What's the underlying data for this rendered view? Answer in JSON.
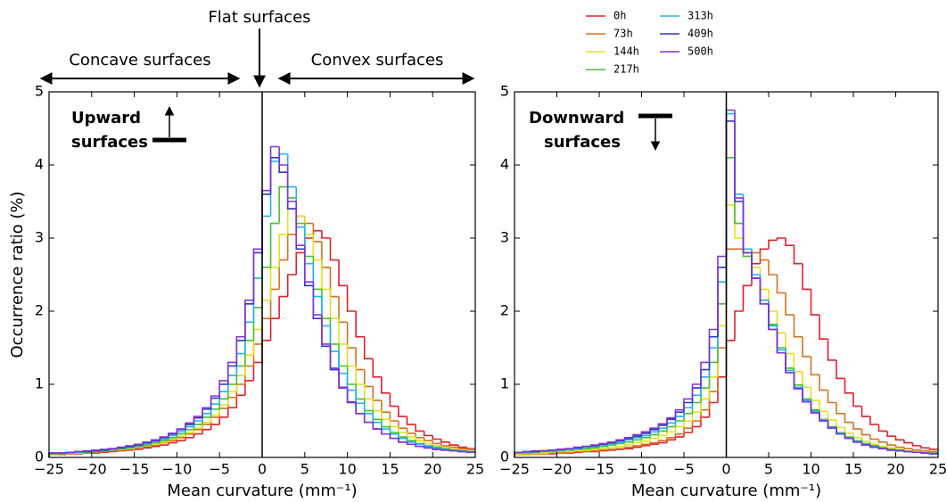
{
  "chart_data": [
    {
      "type": "histogram",
      "xlabel": "Mean curvature (mm⁻¹)",
      "ylabel": "Occurrence ratio (%)",
      "annotations": [
        "Flat surfaces",
        "Concave surfaces",
        "Convex surfaces"
      ],
      "label_lines": [
        "Upward",
        "surfaces"
      ],
      "xlim": [
        -25,
        25
      ],
      "ylim": [
        0,
        5
      ],
      "vline": 0,
      "xticks": [
        {
          "value": -25,
          "label": "−25"
        },
        {
          "value": -20,
          "label": "−20"
        },
        {
          "value": -15,
          "label": "−15"
        },
        {
          "value": -10,
          "label": "−10"
        },
        {
          "value": -5,
          "label": "−5"
        },
        0,
        5,
        10,
        15,
        20,
        25
      ],
      "yticks": [
        0,
        1,
        2,
        3,
        4,
        5
      ],
      "bins": [
        -25,
        -24,
        -23,
        -22,
        -21,
        -20,
        -19,
        -18,
        -17,
        -16,
        -15,
        -14,
        -13,
        -12,
        -11,
        -10,
        -9,
        -8,
        -7,
        -6,
        -5,
        -4,
        -3,
        -2,
        -1,
        0,
        1,
        2,
        3,
        4,
        5,
        6,
        7,
        8,
        9,
        10,
        11,
        12,
        13,
        14,
        15,
        16,
        17,
        18,
        19,
        20,
        21,
        22,
        23,
        24,
        25
      ],
      "series": [
        {
          "name": "0h",
          "color": "#e0202a",
          "values": [
            0.04,
            0.04,
            0.05,
            0.05,
            0.06,
            0.06,
            0.07,
            0.08,
            0.09,
            0.1,
            0.11,
            0.13,
            0.15,
            0.17,
            0.2,
            0.23,
            0.27,
            0.32,
            0.38,
            0.45,
            0.55,
            0.68,
            0.85,
            1.05,
            1.3,
            1.6,
            1.9,
            2.2,
            2.5,
            2.8,
            3.0,
            3.1,
            3.0,
            2.7,
            2.35,
            2.0,
            1.65,
            1.35,
            1.1,
            0.88,
            0.7,
            0.56,
            0.45,
            0.36,
            0.3,
            0.25,
            0.21,
            0.17,
            0.14,
            0.12
          ]
        },
        {
          "name": "73h",
          "color": "#d2731e",
          "values": [
            0.04,
            0.05,
            0.05,
            0.06,
            0.06,
            0.07,
            0.08,
            0.09,
            0.1,
            0.11,
            0.13,
            0.15,
            0.17,
            0.2,
            0.23,
            0.27,
            0.32,
            0.38,
            0.45,
            0.55,
            0.67,
            0.82,
            1.0,
            1.25,
            1.55,
            1.9,
            2.3,
            2.7,
            3.05,
            3.3,
            3.2,
            2.95,
            2.6,
            2.2,
            1.85,
            1.5,
            1.2,
            0.97,
            0.78,
            0.62,
            0.5,
            0.4,
            0.33,
            0.27,
            0.23,
            0.19,
            0.16,
            0.14,
            0.12,
            0.11
          ]
        },
        {
          "name": "144h",
          "color": "#e2e020",
          "values": [
            0.05,
            0.05,
            0.06,
            0.06,
            0.07,
            0.08,
            0.09,
            0.1,
            0.11,
            0.12,
            0.14,
            0.16,
            0.18,
            0.21,
            0.25,
            0.29,
            0.34,
            0.4,
            0.48,
            0.58,
            0.72,
            0.9,
            1.12,
            1.4,
            1.75,
            2.15,
            2.6,
            3.05,
            3.4,
            3.3,
            3.05,
            2.7,
            2.3,
            1.9,
            1.55,
            1.25,
            1.0,
            0.8,
            0.64,
            0.52,
            0.42,
            0.34,
            0.28,
            0.23,
            0.19,
            0.16,
            0.14,
            0.12,
            0.1,
            0.09
          ]
        },
        {
          "name": "217h",
          "color": "#44c034",
          "values": [
            0.05,
            0.05,
            0.06,
            0.07,
            0.07,
            0.08,
            0.09,
            0.1,
            0.12,
            0.13,
            0.15,
            0.17,
            0.2,
            0.23,
            0.27,
            0.32,
            0.38,
            0.45,
            0.55,
            0.66,
            0.8,
            1.0,
            1.25,
            1.6,
            2.05,
            2.6,
            3.2,
            3.7,
            3.55,
            3.2,
            2.75,
            2.3,
            1.9,
            1.55,
            1.25,
            1.0,
            0.8,
            0.64,
            0.52,
            0.42,
            0.34,
            0.28,
            0.23,
            0.19,
            0.16,
            0.14,
            0.12,
            0.1,
            0.09,
            0.08
          ]
        },
        {
          "name": "313h",
          "color": "#22b4f0",
          "values": [
            0.06,
            0.06,
            0.07,
            0.07,
            0.08,
            0.09,
            0.1,
            0.11,
            0.13,
            0.14,
            0.16,
            0.19,
            0.22,
            0.25,
            0.3,
            0.35,
            0.42,
            0.5,
            0.6,
            0.73,
            0.9,
            1.12,
            1.42,
            1.85,
            2.45,
            3.3,
            4.05,
            4.15,
            3.7,
            3.15,
            2.65,
            2.2,
            1.8,
            1.45,
            1.15,
            0.92,
            0.74,
            0.6,
            0.48,
            0.39,
            0.32,
            0.26,
            0.21,
            0.18,
            0.15,
            0.13,
            0.11,
            0.1,
            0.09,
            0.08
          ]
        },
        {
          "name": "409h",
          "color": "#3434c4",
          "values": [
            0.06,
            0.06,
            0.07,
            0.08,
            0.08,
            0.09,
            0.1,
            0.12,
            0.13,
            0.15,
            0.17,
            0.2,
            0.23,
            0.27,
            0.32,
            0.38,
            0.45,
            0.54,
            0.66,
            0.81,
            1.0,
            1.25,
            1.6,
            2.1,
            2.8,
            3.6,
            4.1,
            3.9,
            3.4,
            2.85,
            2.35,
            1.9,
            1.52,
            1.2,
            0.95,
            0.75,
            0.6,
            0.48,
            0.39,
            0.32,
            0.26,
            0.21,
            0.18,
            0.15,
            0.13,
            0.11,
            0.1,
            0.09,
            0.08,
            0.07
          ]
        },
        {
          "name": "500h",
          "color": "#8434d4",
          "values": [
            0.06,
            0.06,
            0.07,
            0.08,
            0.09,
            0.1,
            0.11,
            0.12,
            0.14,
            0.16,
            0.18,
            0.21,
            0.24,
            0.28,
            0.33,
            0.39,
            0.47,
            0.56,
            0.68,
            0.84,
            1.05,
            1.3,
            1.65,
            2.15,
            2.85,
            3.65,
            4.25,
            4.0,
            3.5,
            2.9,
            2.4,
            1.95,
            1.55,
            1.22,
            0.96,
            0.76,
            0.6,
            0.48,
            0.39,
            0.32,
            0.26,
            0.21,
            0.18,
            0.15,
            0.13,
            0.11,
            0.1,
            0.09,
            0.08,
            0.07
          ]
        }
      ]
    },
    {
      "type": "histogram",
      "xlabel": "Mean curvature (mm⁻¹)",
      "label_lines": [
        "Downward",
        "surfaces"
      ],
      "xlim": [
        -25,
        25
      ],
      "ylim": [
        0,
        5
      ],
      "vline": 0,
      "legend": true,
      "xticks": [
        {
          "value": -25,
          "label": "−25"
        },
        {
          "value": -20,
          "label": "−20"
        },
        {
          "value": -15,
          "label": "−15"
        },
        {
          "value": -10,
          "label": "−10"
        },
        {
          "value": -5,
          "label": "−5"
        },
        0,
        5,
        10,
        15,
        20,
        25
      ],
      "yticks": [
        0,
        1,
        2,
        3,
        4,
        5
      ],
      "bins": [
        -25,
        -24,
        -23,
        -22,
        -21,
        -20,
        -19,
        -18,
        -17,
        -16,
        -15,
        -14,
        -13,
        -12,
        -11,
        -10,
        -9,
        -8,
        -7,
        -6,
        -5,
        -4,
        -3,
        -2,
        -1,
        0,
        1,
        2,
        3,
        4,
        5,
        6,
        7,
        8,
        9,
        10,
        11,
        12,
        13,
        14,
        15,
        16,
        17,
        18,
        19,
        20,
        21,
        22,
        23,
        24,
        25
      ],
      "series": [
        {
          "name": "0h",
          "color": "#e0202a",
          "values": [
            0.04,
            0.04,
            0.05,
            0.05,
            0.05,
            0.06,
            0.06,
            0.07,
            0.08,
            0.08,
            0.09,
            0.1,
            0.11,
            0.12,
            0.14,
            0.16,
            0.18,
            0.2,
            0.24,
            0.28,
            0.34,
            0.42,
            0.55,
            0.75,
            1.1,
            1.6,
            2.0,
            2.35,
            2.65,
            2.85,
            2.97,
            3.0,
            2.9,
            2.65,
            2.3,
            1.95,
            1.62,
            1.33,
            1.08,
            0.88,
            0.7,
            0.56,
            0.45,
            0.36,
            0.29,
            0.24,
            0.2,
            0.16,
            0.13,
            0.11
          ]
        },
        {
          "name": "73h",
          "color": "#d2731e",
          "values": [
            0.04,
            0.04,
            0.05,
            0.05,
            0.06,
            0.06,
            0.07,
            0.08,
            0.08,
            0.09,
            0.1,
            0.11,
            0.12,
            0.14,
            0.16,
            0.18,
            0.2,
            0.23,
            0.27,
            0.32,
            0.4,
            0.5,
            0.65,
            0.9,
            1.5,
            2.85,
            2.85,
            2.85,
            2.8,
            2.7,
            2.5,
            2.25,
            1.95,
            1.65,
            1.38,
            1.13,
            0.92,
            0.75,
            0.6,
            0.48,
            0.39,
            0.31,
            0.25,
            0.21,
            0.17,
            0.14,
            0.12,
            0.1,
            0.09,
            0.08
          ]
        },
        {
          "name": "144h",
          "color": "#e2e020",
          "values": [
            0.05,
            0.05,
            0.06,
            0.06,
            0.07,
            0.08,
            0.08,
            0.09,
            0.1,
            0.11,
            0.12,
            0.14,
            0.15,
            0.17,
            0.2,
            0.22,
            0.26,
            0.3,
            0.35,
            0.42,
            0.5,
            0.62,
            0.8,
            1.1,
            1.8,
            3.45,
            3.0,
            2.75,
            2.6,
            2.3,
            2.0,
            1.7,
            1.42,
            1.17,
            0.96,
            0.78,
            0.63,
            0.51,
            0.41,
            0.33,
            0.27,
            0.22,
            0.18,
            0.15,
            0.13,
            0.11,
            0.09,
            0.08,
            0.07,
            0.06
          ]
        },
        {
          "name": "217h",
          "color": "#44c034",
          "values": [
            0.06,
            0.06,
            0.07,
            0.08,
            0.08,
            0.09,
            0.1,
            0.11,
            0.12,
            0.13,
            0.15,
            0.17,
            0.19,
            0.21,
            0.24,
            0.27,
            0.31,
            0.36,
            0.42,
            0.5,
            0.6,
            0.75,
            0.95,
            1.3,
            2.1,
            4.1,
            3.2,
            2.75,
            2.45,
            2.15,
            1.82,
            1.5,
            1.22,
            0.99,
            0.8,
            0.65,
            0.52,
            0.42,
            0.34,
            0.28,
            0.23,
            0.19,
            0.16,
            0.13,
            0.11,
            0.1,
            0.08,
            0.07,
            0.06,
            0.06
          ]
        },
        {
          "name": "313h",
          "color": "#22b4f0",
          "values": [
            0.07,
            0.07,
            0.08,
            0.09,
            0.09,
            0.1,
            0.11,
            0.12,
            0.14,
            0.15,
            0.17,
            0.19,
            0.21,
            0.24,
            0.27,
            0.3,
            0.35,
            0.4,
            0.47,
            0.56,
            0.68,
            0.85,
            1.1,
            1.5,
            2.4,
            4.7,
            3.6,
            2.85,
            2.5,
            2.15,
            1.8,
            1.47,
            1.19,
            0.96,
            0.78,
            0.63,
            0.51,
            0.41,
            0.33,
            0.27,
            0.22,
            0.18,
            0.15,
            0.12,
            0.1,
            0.09,
            0.08,
            0.07,
            0.06,
            0.05
          ]
        },
        {
          "name": "409h",
          "color": "#3434c4",
          "values": [
            0.07,
            0.08,
            0.08,
            0.09,
            0.1,
            0.11,
            0.12,
            0.13,
            0.15,
            0.16,
            0.18,
            0.2,
            0.23,
            0.26,
            0.29,
            0.33,
            0.38,
            0.44,
            0.52,
            0.62,
            0.75,
            0.95,
            1.2,
            1.65,
            2.6,
            4.6,
            3.5,
            2.8,
            2.45,
            2.1,
            1.75,
            1.43,
            1.16,
            0.94,
            0.76,
            0.61,
            0.5,
            0.4,
            0.32,
            0.26,
            0.21,
            0.17,
            0.14,
            0.12,
            0.1,
            0.09,
            0.08,
            0.07,
            0.06,
            0.05
          ]
        },
        {
          "name": "500h",
          "color": "#8434d4",
          "values": [
            0.07,
            0.08,
            0.09,
            0.09,
            0.1,
            0.11,
            0.12,
            0.14,
            0.15,
            0.17,
            0.19,
            0.21,
            0.24,
            0.27,
            0.31,
            0.35,
            0.4,
            0.46,
            0.54,
            0.65,
            0.8,
            1.0,
            1.3,
            1.75,
            2.75,
            4.75,
            3.55,
            2.8,
            2.45,
            2.1,
            1.75,
            1.43,
            1.16,
            0.94,
            0.76,
            0.61,
            0.5,
            0.4,
            0.32,
            0.26,
            0.21,
            0.17,
            0.14,
            0.12,
            0.1,
            0.09,
            0.08,
            0.07,
            0.06,
            0.05
          ]
        }
      ]
    }
  ]
}
